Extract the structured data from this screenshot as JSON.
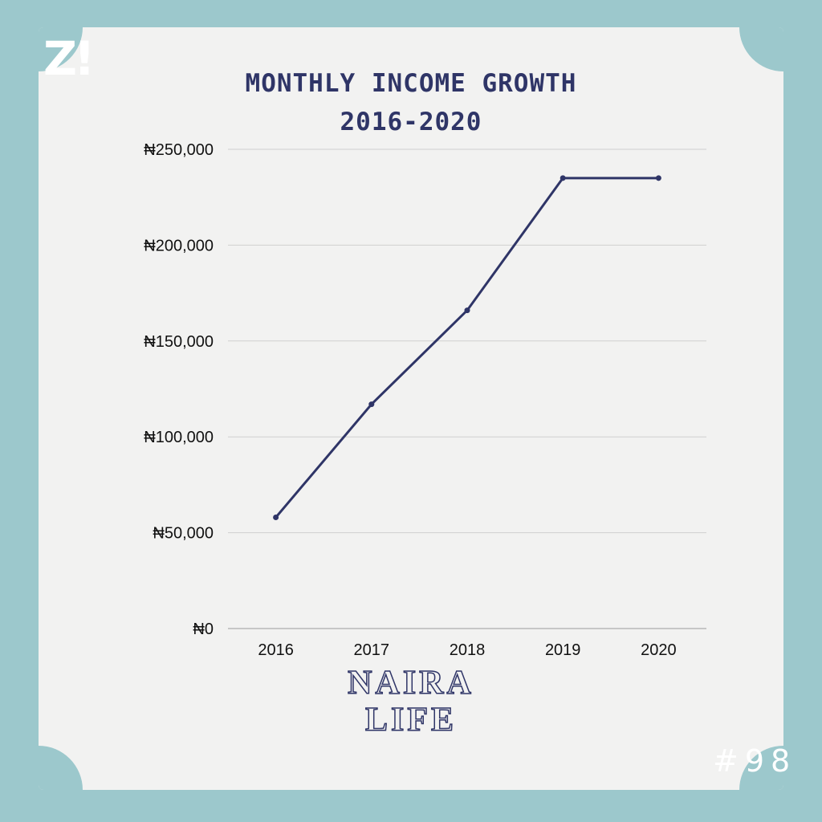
{
  "logo_text": "Z!",
  "issue_label": "#98",
  "brand": {
    "line1": "NAIRA",
    "line2": "LIFE"
  },
  "colors": {
    "background": "#9cc8cc",
    "line": "#2f3567",
    "title": "#2f3567"
  },
  "chart_data": {
    "type": "line",
    "title_line1": "MONTHLY INCOME GROWTH",
    "title_line2": "2016-2020",
    "xlabel": "",
    "ylabel": "",
    "categories": [
      "2016",
      "2017",
      "2018",
      "2019",
      "2020"
    ],
    "series": [
      {
        "values": [
          58000,
          117000,
          166000,
          235000,
          235000
        ]
      }
    ],
    "ylim": [
      0,
      250000
    ],
    "yticks": [
      0,
      50000,
      100000,
      150000,
      200000,
      250000
    ],
    "ytick_labels": [
      "₦0",
      "₦50,000",
      "₦100,000",
      "₦150,000",
      "₦200,000",
      "₦250,000"
    ],
    "grid": true,
    "legend": "none"
  }
}
